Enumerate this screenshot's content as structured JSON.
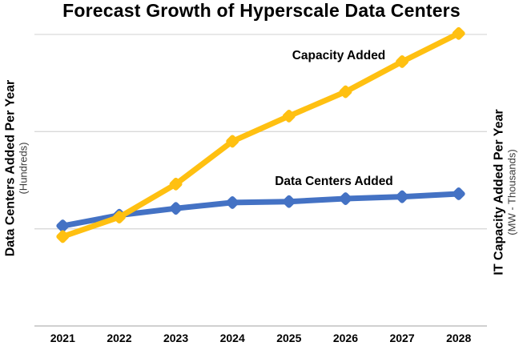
{
  "title": "Forecast Growth of Hyperscale Data Centers",
  "left_axis": {
    "title": "Data Centers Added Per Year",
    "units": "(Hundreds)"
  },
  "right_axis": {
    "title": "IT Capacity Added Per Year",
    "units": "(MW - Thousands)"
  },
  "chart_data": {
    "type": "line",
    "title": "Forecast Growth of Hyperscale Data Centers",
    "categories": [
      "2021",
      "2022",
      "2023",
      "2024",
      "2025",
      "2026",
      "2027",
      "2028"
    ],
    "series": [
      {
        "name": "Data Centers Added",
        "axis": "left (Hundreds)",
        "color": "#4472C4",
        "marker": "diamond",
        "values": [
          1.03,
          1.14,
          1.21,
          1.27,
          1.28,
          1.31,
          1.33,
          1.36
        ]
      },
      {
        "name": "Capacity Added",
        "axis": "right (MW - Thousands)",
        "color": "#FFC011",
        "marker": "diamond",
        "values": [
          0.92,
          1.12,
          1.46,
          1.9,
          2.16,
          2.41,
          2.72,
          3.01
        ]
      }
    ],
    "xlabel": "",
    "ylabel_left": "Data Centers Added Per Year (Hundreds)",
    "ylabel_right": "IT Capacity Added Per Year (MW - Thousands)",
    "ylim": [
      0,
      3
    ],
    "y_ticks_labeled": false,
    "gridline_values": [
      1,
      2,
      3
    ],
    "grid": "horizontal only, light gray, no numeric tick labels",
    "legend": "inline text annotations next to each line"
  },
  "colors": {
    "background": "#FFFFFF",
    "grid": "#D9D9D9",
    "axis_line": "#C0C0C0",
    "blue_series": "#4472C4",
    "gold_series": "#FFC011",
    "text": "#000000"
  }
}
